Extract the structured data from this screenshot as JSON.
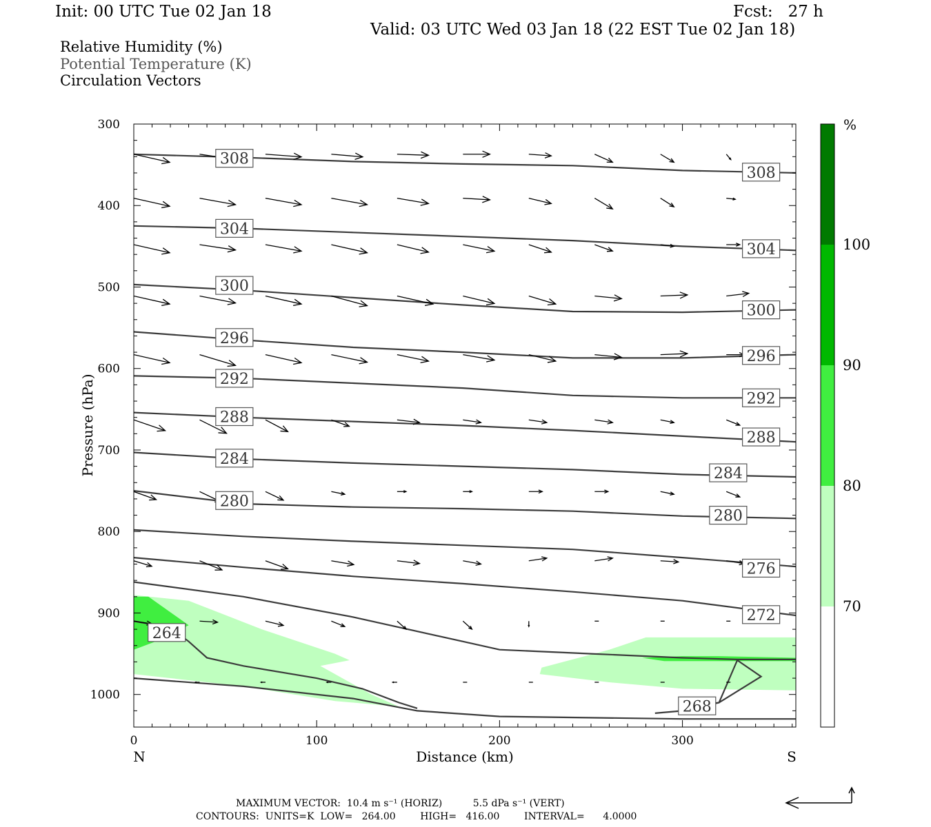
{
  "header": {
    "init": "Init: 00 UTC Tue 02 Jan 18",
    "fcst": "Fcst:   27 h",
    "valid": "Valid: 03 UTC Wed 03 Jan 18 (22 EST Tue 02 Jan 18)"
  },
  "legend_titles": {
    "rh": "Relative Humidity (%)",
    "theta": "Potential Temperature (K)",
    "vectors": "Circulation Vectors"
  },
  "colors": {
    "rh_70_80": "#bfffbf",
    "rh_80_90": "#40ee40",
    "rh_90_100": "#00b800",
    "rh_100": "#007a00",
    "contour": "#3a3a3a",
    "vector": "#000000"
  },
  "colorbar": {
    "unit": "%",
    "levels": [
      "100",
      "90",
      "80",
      "70"
    ]
  },
  "footer": {
    "max_vector": "MAXIMUM VECTOR:  10.4 m s⁻¹ (HORIZ)          5.5 dPa s⁻¹ (VERT)",
    "contours": "CONTOURS:  UNITS=K  LOW=   264.00        HIGH=   416.00        INTERVAL=      4.0000"
  },
  "chart_data": {
    "type": "cross-section",
    "title": "",
    "xlabel": "Distance (km)",
    "ylabel": "Pressure (hPa)",
    "x_range": [
      0,
      362
    ],
    "y_range": [
      300,
      1040
    ],
    "y_scale": "linear, inverted",
    "x_ticks": [
      "0",
      "100",
      "200",
      "300"
    ],
    "y_ticks": [
      "300",
      "400",
      "500",
      "600",
      "700",
      "800",
      "900",
      "1000"
    ],
    "x_end_labels": {
      "left": "N",
      "right": "S"
    },
    "theta_contours": [
      {
        "label": "308",
        "x": [
          0,
          60,
          120,
          180,
          240,
          300,
          362
        ],
        "p": [
          337,
          341,
          346,
          349,
          351,
          357,
          360
        ]
      },
      {
        "label": "304",
        "x": [
          0,
          60,
          120,
          180,
          240,
          300,
          362
        ],
        "p": [
          425,
          428,
          433,
          438,
          443,
          450,
          455
        ]
      },
      {
        "label": "300",
        "x": [
          0,
          60,
          120,
          180,
          240,
          300,
          362
        ],
        "p": [
          497,
          504,
          513,
          522,
          530,
          531,
          528
        ]
      },
      {
        "label": "296",
        "x": [
          0,
          60,
          120,
          180,
          240,
          300,
          362
        ],
        "p": [
          555,
          565,
          574,
          580,
          587,
          587,
          583
        ]
      },
      {
        "label": "292",
        "x": [
          0,
          60,
          120,
          180,
          240,
          300,
          362
        ],
        "p": [
          609,
          612,
          618,
          624,
          633,
          636,
          636
        ]
      },
      {
        "label": "288",
        "x": [
          0,
          60,
          120,
          180,
          240,
          300,
          362
        ],
        "p": [
          654,
          660,
          665,
          670,
          676,
          683,
          690
        ]
      },
      {
        "label": "284",
        "x": [
          0,
          60,
          120,
          180,
          240,
          300,
          362
        ],
        "p": [
          703,
          711,
          716,
          720,
          724,
          730,
          733
        ]
      },
      {
        "label": "280",
        "x": [
          0,
          60,
          120,
          180,
          240,
          300,
          362
        ],
        "p": [
          750,
          766,
          770,
          772,
          775,
          781,
          784
        ]
      },
      {
        "label": "276",
        "x": [
          0,
          60,
          120,
          180,
          240,
          300,
          362
        ],
        "p": [
          798,
          806,
          812,
          817,
          822,
          832,
          843
        ]
      },
      {
        "label": "272",
        "x": [
          0,
          60,
          120,
          180,
          240,
          300,
          362
        ],
        "p": [
          832,
          844,
          855,
          864,
          874,
          885,
          903
        ]
      },
      {
        "label": "",
        "x": [
          0,
          60,
          120,
          180,
          200,
          250,
          300,
          330,
          362
        ],
        "p": [
          862,
          880,
          905,
          935,
          945,
          950,
          955,
          957,
          957
        ]
      },
      {
        "label": "264",
        "x": [
          0,
          20,
          30,
          40,
          60,
          100,
          125,
          145,
          155
        ],
        "p": [
          910,
          918,
          935,
          955,
          965,
          980,
          993,
          1010,
          1017
        ]
      },
      {
        "label": "268",
        "x": [
          0,
          60,
          120,
          155,
          200,
          300,
          362
        ],
        "p": [
          980,
          990,
          1005,
          1020,
          1027,
          1030,
          1030
        ]
      },
      {
        "label": "",
        "x": [
          285,
          300,
          320,
          330,
          343,
          320,
          300
        ],
        "p": [
          1023,
          1020,
          1010,
          958,
          978,
          1010,
          1016
        ]
      }
    ],
    "theta_label_positions": [
      {
        "text": "308",
        "x": 55,
        "p": 342
      },
      {
        "text": "308",
        "x": 343,
        "p": 359
      },
      {
        "text": "304",
        "x": 55,
        "p": 428
      },
      {
        "text": "304",
        "x": 343,
        "p": 453
      },
      {
        "text": "300",
        "x": 55,
        "p": 498
      },
      {
        "text": "300",
        "x": 343,
        "p": 528
      },
      {
        "text": "296",
        "x": 55,
        "p": 562
      },
      {
        "text": "296",
        "x": 343,
        "p": 584
      },
      {
        "text": "292",
        "x": 55,
        "p": 612
      },
      {
        "text": "292",
        "x": 343,
        "p": 636
      },
      {
        "text": "288",
        "x": 55,
        "p": 659
      },
      {
        "text": "288",
        "x": 343,
        "p": 684
      },
      {
        "text": "284",
        "x": 55,
        "p": 710
      },
      {
        "text": "284",
        "x": 325,
        "p": 728
      },
      {
        "text": "280",
        "x": 55,
        "p": 762
      },
      {
        "text": "280",
        "x": 325,
        "p": 780
      },
      {
        "text": "276",
        "x": 343,
        "p": 845
      },
      {
        "text": "272",
        "x": 343,
        "p": 902
      },
      {
        "text": "264",
        "x": 18,
        "p": 924
      },
      {
        "text": "268",
        "x": 308,
        "p": 1014
      }
    ],
    "rh_regions": [
      {
        "level": "70",
        "x": [
          0,
          30,
          70,
          110,
          118,
          102,
          130,
          145,
          110,
          60,
          0
        ],
        "p": [
          878,
          885,
          920,
          950,
          958,
          965,
          1000,
          1015,
          1008,
          990,
          975
        ]
      },
      {
        "level": "70",
        "x": [
          223,
          260,
          280,
          320,
          362,
          362,
          300,
          260,
          222
        ],
        "p": [
          967,
          945,
          930,
          930,
          930,
          995,
          993,
          985,
          975
        ]
      },
      {
        "level": "80",
        "x": [
          0,
          8,
          30,
          12,
          0
        ],
        "p": [
          880,
          880,
          915,
          935,
          945
        ]
      },
      {
        "level": "80",
        "x": [
          278,
          300,
          320,
          362,
          362,
          290
        ],
        "p": [
          955,
          953,
          953,
          955,
          959,
          959
        ]
      }
    ],
    "vectors": {
      "columns_x": [
        0,
        36,
        72,
        108,
        144,
        180,
        216,
        252,
        288,
        324
      ],
      "rows": [
        {
          "p": 337,
          "u": [
            8,
            8,
            8,
            7,
            7,
            6,
            5,
            4,
            3,
            1
          ],
          "w": [
            -1.5,
            -1,
            -0.5,
            -0.5,
            -0.2,
            0,
            -0.3,
            -1.5,
            -1.5,
            -1
          ]
        },
        {
          "p": 391,
          "u": [
            8,
            8,
            8,
            8,
            7,
            6,
            5,
            4,
            3,
            2
          ],
          "w": [
            -1.5,
            -1.2,
            -1.2,
            -1.2,
            -1,
            -0.3,
            -1,
            -2,
            -1.6,
            -0.2
          ]
        },
        {
          "p": 448,
          "u": [
            8,
            8,
            8,
            8,
            7,
            7,
            5,
            4,
            3,
            3
          ],
          "w": [
            -1.5,
            -1,
            -1.2,
            -1.5,
            -1.4,
            -1.2,
            -1.4,
            -1.2,
            -0.3,
            0
          ]
        },
        {
          "p": 511,
          "u": [
            8,
            8,
            8,
            8,
            8,
            7,
            6,
            6,
            6,
            5
          ],
          "w": [
            -1.5,
            -1.3,
            -1.5,
            -1.8,
            -1.5,
            -1.4,
            -1.5,
            -0.5,
            0.2,
            0.5
          ]
        },
        {
          "p": 583,
          "u": [
            8,
            8,
            8,
            8,
            7,
            7,
            6,
            6,
            6,
            4
          ],
          "w": [
            -1.5,
            -2,
            -1.5,
            -1.4,
            -1.2,
            -1,
            -1.2,
            -0.5,
            0.2,
            0
          ]
        },
        {
          "p": 663,
          "u": [
            7,
            6,
            5,
            4,
            5,
            4,
            4,
            4,
            3,
            3
          ],
          "w": [
            -2,
            -2.5,
            -2.2,
            -1.2,
            -0.5,
            -0.5,
            -0.5,
            -0.5,
            -0.5,
            -1
          ]
        },
        {
          "p": 751,
          "u": [
            5,
            5,
            4,
            3,
            2,
            2,
            3,
            3,
            3,
            3
          ],
          "w": [
            -1.5,
            -2,
            -1.6,
            -0.5,
            0,
            0,
            0,
            0,
            -0.5,
            -1
          ]
        },
        {
          "p": 836,
          "u": [
            4,
            5,
            5,
            5,
            5,
            4,
            4,
            4,
            4,
            4
          ],
          "w": [
            -1,
            -1.7,
            -1.5,
            -0.7,
            -0.5,
            -0.6,
            0.5,
            0.5,
            -0.2,
            -0.5
          ]
        },
        {
          "p": 910,
          "u": [
            4,
            4,
            4,
            3,
            2,
            2,
            0,
            0,
            0,
            0
          ],
          "w": [
            -0.5,
            -0.2,
            -0.8,
            -1,
            -1.5,
            -1.5,
            -1,
            0,
            0,
            0
          ]
        },
        {
          "p": 985,
          "u": [
            -1,
            -1,
            -1,
            -1,
            -1,
            0,
            0,
            0,
            0,
            0
          ],
          "w": [
            0,
            0,
            0,
            0,
            0,
            0,
            0,
            0,
            0,
            0
          ]
        }
      ]
    }
  }
}
